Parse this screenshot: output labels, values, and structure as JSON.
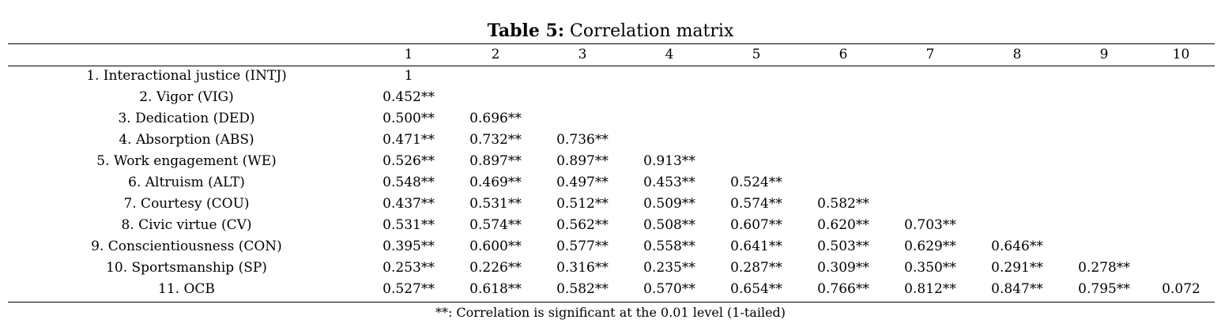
{
  "caption": {
    "label": "Table 5:",
    "title": "Correlation matrix"
  },
  "columns": [
    "1",
    "2",
    "3",
    "4",
    "5",
    "6",
    "7",
    "8",
    "9",
    "10"
  ],
  "rows": [
    {
      "label": "1. Interactional justice (INTJ)",
      "values": [
        "1"
      ]
    },
    {
      "label": "2. Vigor (VIG)",
      "values": [
        "0.452**"
      ]
    },
    {
      "label": "3. Dedication (DED)",
      "values": [
        "0.500**",
        "0.696**"
      ]
    },
    {
      "label": "4. Absorption (ABS)",
      "values": [
        "0.471**",
        "0.732**",
        "0.736**"
      ]
    },
    {
      "label": "5. Work engagement (WE)",
      "values": [
        "0.526**",
        "0.897**",
        "0.897**",
        "0.913**"
      ]
    },
    {
      "label": "6. Altruism (ALT)",
      "values": [
        "0.548**",
        "0.469**",
        "0.497**",
        "0.453**",
        "0.524**"
      ]
    },
    {
      "label": "7. Courtesy (COU)",
      "values": [
        "0.437**",
        "0.531**",
        "0.512**",
        "0.509**",
        "0.574**",
        "0.582**"
      ]
    },
    {
      "label": "8. Civic virtue (CV)",
      "values": [
        "0.531**",
        "0.574**",
        "0.562**",
        "0.508**",
        "0.607**",
        "0.620**",
        "0.703**"
      ]
    },
    {
      "label": "9. Conscientiousness (CON)",
      "values": [
        "0.395**",
        "0.600**",
        "0.577**",
        "0.558**",
        "0.641**",
        "0.503**",
        "0.629**",
        "0.646**"
      ]
    },
    {
      "label": "10. Sportsmanship (SP)",
      "values": [
        "0.253**",
        "0.226**",
        "0.316**",
        "0.235**",
        "0.287**",
        "0.309**",
        "0.350**",
        "0.291**",
        "0.278**"
      ]
    },
    {
      "label": "11. OCB",
      "values": [
        "0.527**",
        "0.618**",
        "0.582**",
        "0.570**",
        "0.654**",
        "0.766**",
        "0.812**",
        "0.847**",
        "0.795**",
        "0.072"
      ]
    }
  ],
  "footnote": "**: Correlation is significant at the 0.01 level (1-tailed)"
}
